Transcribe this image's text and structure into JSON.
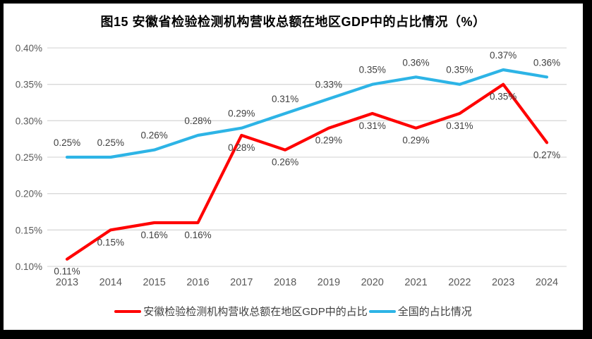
{
  "chart_data": {
    "type": "line",
    "title": "图15 安徽省检验检测机构营收总额在地区GDP中的占比情况（%）",
    "categories": [
      "2013",
      "2014",
      "2015",
      "2016",
      "2017",
      "2018",
      "2019",
      "2020",
      "2021",
      "2022",
      "2023",
      "2024"
    ],
    "series": [
      {
        "name": "安徽检验检测机构营收总额在地区GDP中的占比",
        "color": "#FF0000",
        "values": [
          0.11,
          0.15,
          0.16,
          0.16,
          0.28,
          0.26,
          0.29,
          0.31,
          0.29,
          0.31,
          0.35,
          0.27
        ],
        "labels": [
          "0.11%",
          "0.15%",
          "0.16%",
          "0.16%",
          "0.28%",
          "0.26%",
          "0.29%",
          "0.31%",
          "0.29%",
          "0.31%",
          "0.35%",
          "0.27%"
        ],
        "label_position": "below"
      },
      {
        "name": "全国的占比情况",
        "color": "#2DB4E6",
        "values": [
          0.25,
          0.25,
          0.26,
          0.28,
          0.29,
          0.31,
          0.33,
          0.35,
          0.36,
          0.35,
          0.37,
          0.36
        ],
        "labels": [
          "0.25%",
          "0.25%",
          "0.26%",
          "0.28%",
          "0.29%",
          "0.31%",
          "0.33%",
          "0.35%",
          "0.36%",
          "0.35%",
          "0.37%",
          "0.36%"
        ],
        "label_position": "above"
      }
    ],
    "ylim": [
      0.1,
      0.4
    ],
    "ytick_labels": [
      "0.40%",
      "0.35%",
      "0.30%",
      "0.25%",
      "0.20%",
      "0.15%",
      "0.10%"
    ],
    "grid": true,
    "gridline_color": "#D9D9D9",
    "axis_label_color": "#595959",
    "data_label_color": "#404040",
    "legend_position": "bottom"
  }
}
